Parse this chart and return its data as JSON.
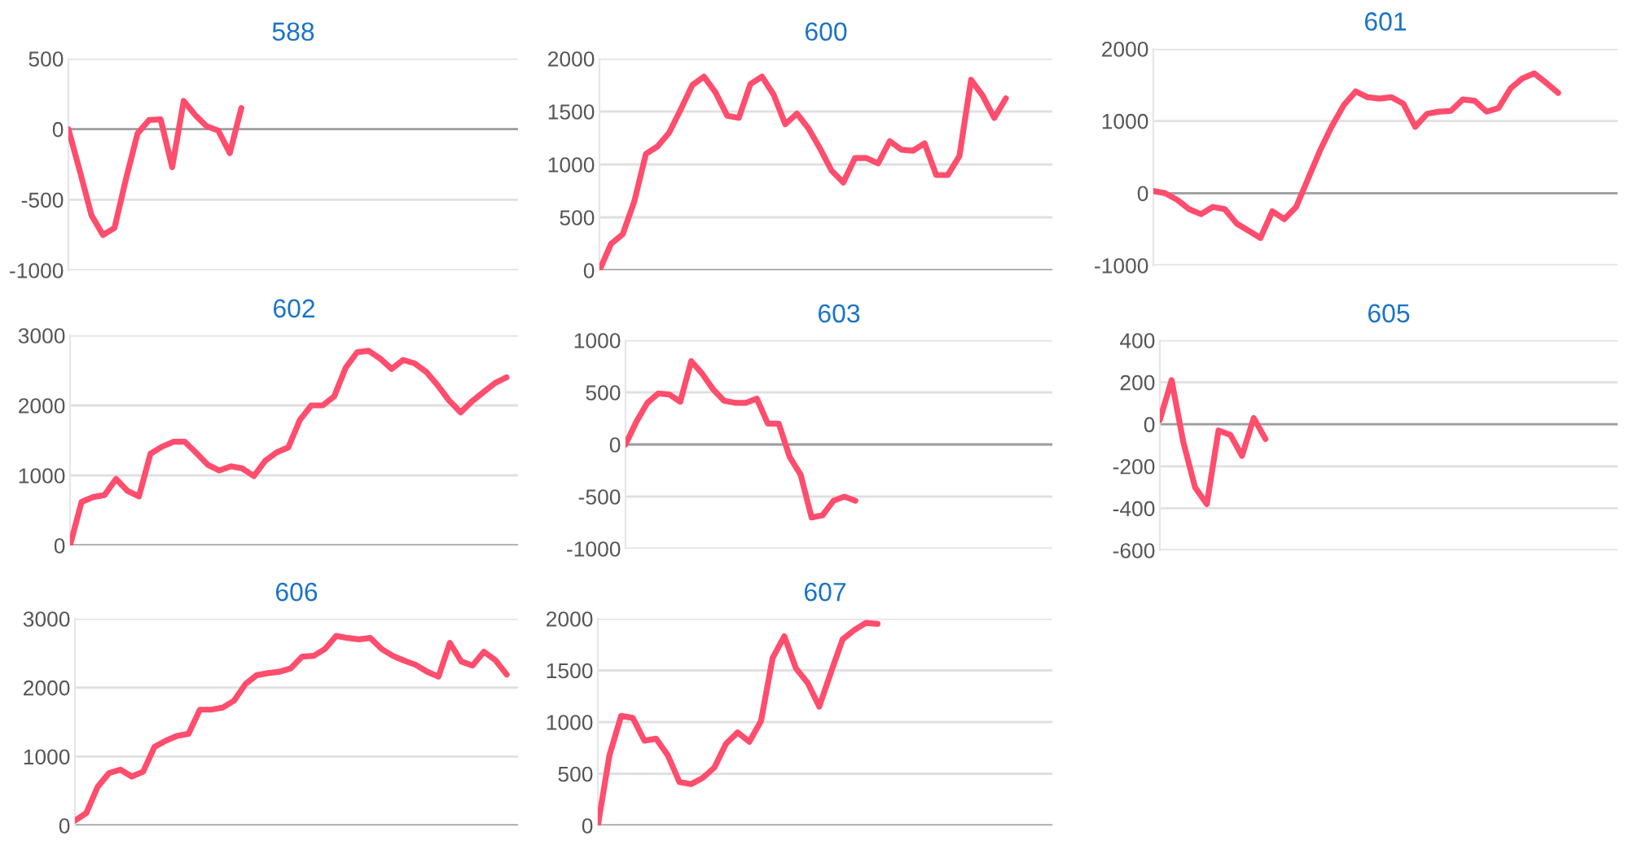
{
  "chart_data": [
    {
      "type": "line",
      "title": "588",
      "color": "#ff4d6d",
      "categories": [
        null,
        null,
        null,
        null,
        null,
        null,
        null,
        null,
        null,
        null,
        null,
        null,
        null,
        null,
        null,
        null,
        null,
        null,
        null,
        null,
        null,
        null,
        null,
        null,
        null,
        null,
        null,
        null,
        null,
        null,
        null,
        null,
        null,
        null,
        null,
        null,
        null,
        null,
        null,
        null
      ],
      "values": [
        0,
        -300,
        -610,
        -750,
        -700,
        -350,
        -30,
        65,
        70,
        -270,
        200,
        100,
        20,
        -10,
        -170,
        150,
        null,
        null,
        null,
        null,
        null,
        null,
        null,
        null,
        null,
        null,
        null,
        null,
        null,
        null,
        null,
        null,
        null,
        null,
        null,
        null,
        null,
        null,
        null,
        null
      ],
      "ylim": [
        -1000,
        500
      ],
      "yticks": [
        -1000,
        -500,
        0,
        500
      ],
      "grid": "y",
      "tick_labels": "y",
      "marker": "none",
      "line_style": "solid",
      "ref_lines": [
        {
          "axis": "y",
          "value": 0,
          "color": "#9e9e9e"
        }
      ]
    },
    {
      "type": "line",
      "title": "600",
      "color": "#ff4d6d",
      "categories": [
        null,
        null,
        null,
        null,
        null,
        null,
        null,
        null,
        null,
        null,
        null,
        null,
        null,
        null,
        null,
        null,
        null,
        null,
        null,
        null,
        null,
        null,
        null,
        null,
        null,
        null,
        null,
        null,
        null,
        null,
        null,
        null,
        null,
        null,
        null,
        null,
        null,
        null,
        null,
        null
      ],
      "values": [
        0,
        250,
        340,
        650,
        1100,
        1170,
        1300,
        1520,
        1750,
        1830,
        1680,
        1460,
        1440,
        1760,
        1830,
        1660,
        1380,
        1480,
        1340,
        1150,
        940,
        830,
        1060,
        1060,
        1010,
        1220,
        1140,
        1130,
        1200,
        900,
        900,
        1080,
        1800,
        1650,
        1440,
        1625,
        null,
        null,
        null,
        null
      ],
      "ylim": [
        0,
        2000
      ],
      "yticks": [
        0,
        500,
        1000,
        1500,
        2000
      ],
      "grid": "y",
      "tick_labels": "y",
      "marker": "none",
      "line_style": "solid",
      "ref_lines": [
        {
          "axis": "y",
          "value": 0,
          "color": "#9e9e9e"
        }
      ]
    },
    {
      "type": "line",
      "title": "601",
      "color": "#ff4d6d",
      "categories": [
        null,
        null,
        null,
        null,
        null,
        null,
        null,
        null,
        null,
        null,
        null,
        null,
        null,
        null,
        null,
        null,
        null,
        null,
        null,
        null,
        null,
        null,
        null,
        null,
        null,
        null,
        null,
        null,
        null,
        null,
        null,
        null,
        null,
        null,
        null,
        null,
        null,
        null,
        null,
        null
      ],
      "values": [
        30,
        0,
        -90,
        -220,
        -290,
        -190,
        -220,
        -420,
        -520,
        -620,
        -250,
        -360,
        -190,
        200,
        590,
        930,
        1220,
        1410,
        1330,
        1310,
        1330,
        1240,
        920,
        1100,
        1130,
        1140,
        1300,
        1280,
        1130,
        1180,
        1450,
        1590,
        1660,
        1530,
        1390,
        null,
        null,
        null,
        null,
        null
      ],
      "ylim": [
        -1000,
        2000
      ],
      "yticks": [
        -1000,
        0,
        1000,
        2000
      ],
      "grid": "y",
      "tick_labels": "y",
      "marker": "none",
      "line_style": "solid",
      "ref_lines": [
        {
          "axis": "y",
          "value": 0,
          "color": "#9e9e9e"
        }
      ]
    },
    {
      "type": "line",
      "title": "602",
      "color": "#ff4d6d",
      "categories": [
        null,
        null,
        null,
        null,
        null,
        null,
        null,
        null,
        null,
        null,
        null,
        null,
        null,
        null,
        null,
        null,
        null,
        null,
        null,
        null,
        null,
        null,
        null,
        null,
        null,
        null,
        null,
        null,
        null,
        null,
        null,
        null,
        null,
        null,
        null,
        null,
        null,
        null,
        null,
        null
      ],
      "values": [
        0,
        620,
        690,
        720,
        950,
        780,
        700,
        1310,
        1410,
        1480,
        1480,
        1320,
        1150,
        1070,
        1130,
        1100,
        990,
        1210,
        1330,
        1400,
        1790,
        2000,
        2000,
        2130,
        2540,
        2760,
        2780,
        2670,
        2520,
        2650,
        2600,
        2480,
        2290,
        2070,
        1900,
        2060,
        2190,
        2320,
        2400,
        null
      ],
      "ylim": [
        0,
        3000
      ],
      "yticks": [
        0,
        1000,
        2000,
        3000
      ],
      "grid": "y",
      "tick_labels": "y",
      "marker": "none",
      "line_style": "solid",
      "ref_lines": [
        {
          "axis": "y",
          "value": 0,
          "color": "#9e9e9e"
        }
      ]
    },
    {
      "type": "line",
      "title": "603",
      "color": "#ff4d6d",
      "categories": [
        null,
        null,
        null,
        null,
        null,
        null,
        null,
        null,
        null,
        null,
        null,
        null,
        null,
        null,
        null,
        null,
        null,
        null,
        null,
        null,
        null,
        null,
        null,
        null,
        null,
        null,
        null,
        null,
        null,
        null,
        null,
        null,
        null,
        null,
        null,
        null,
        null,
        null,
        null,
        null
      ],
      "values": [
        0,
        220,
        400,
        490,
        480,
        410,
        800,
        680,
        530,
        420,
        400,
        400,
        440,
        200,
        200,
        -120,
        -290,
        -700,
        -680,
        -540,
        -500,
        -540,
        null,
        null,
        null,
        null,
        null,
        null,
        null,
        null,
        null,
        null,
        null,
        null,
        null,
        null,
        null,
        null,
        null,
        null
      ],
      "ylim": [
        -1000,
        1000
      ],
      "yticks": [
        -1000,
        -500,
        0,
        500,
        1000
      ],
      "grid": "y",
      "tick_labels": "y",
      "marker": "none",
      "line_style": "solid",
      "ref_lines": [
        {
          "axis": "y",
          "value": 0,
          "color": "#9e9e9e"
        }
      ]
    },
    {
      "type": "line",
      "title": "605",
      "color": "#ff4d6d",
      "categories": [
        null,
        null,
        null,
        null,
        null,
        null,
        null,
        null,
        null,
        null,
        null,
        null,
        null,
        null,
        null,
        null,
        null,
        null,
        null,
        null,
        null,
        null,
        null,
        null,
        null,
        null,
        null,
        null,
        null,
        null,
        null,
        null,
        null,
        null,
        null,
        null,
        null,
        null,
        null,
        null
      ],
      "values": [
        20,
        210,
        -85,
        -300,
        -380,
        -30,
        -50,
        -150,
        30,
        -70,
        null,
        null,
        null,
        null,
        null,
        null,
        null,
        null,
        null,
        null,
        null,
        null,
        null,
        null,
        null,
        null,
        null,
        null,
        null,
        null,
        null,
        null,
        null,
        null,
        null,
        null,
        null,
        null,
        null,
        null
      ],
      "ylim": [
        -600,
        400
      ],
      "yticks": [
        -600,
        -400,
        -200,
        0,
        200,
        400
      ],
      "grid": "y",
      "tick_labels": "y",
      "marker": "none",
      "line_style": "solid",
      "ref_lines": [
        {
          "axis": "y",
          "value": 0,
          "color": "#9e9e9e"
        }
      ]
    },
    {
      "type": "line",
      "title": "606",
      "color": "#ff4d6d",
      "categories": [
        null,
        null,
        null,
        null,
        null,
        null,
        null,
        null,
        null,
        null,
        null,
        null,
        null,
        null,
        null,
        null,
        null,
        null,
        null,
        null,
        null,
        null,
        null,
        null,
        null,
        null,
        null,
        null,
        null,
        null,
        null,
        null,
        null,
        null,
        null,
        null,
        null,
        null,
        null,
        null
      ],
      "values": [
        70,
        180,
        560,
        760,
        810,
        710,
        780,
        1140,
        1230,
        1300,
        1330,
        1680,
        1680,
        1710,
        1810,
        2050,
        2180,
        2210,
        2230,
        2280,
        2450,
        2460,
        2560,
        2750,
        2720,
        2700,
        2720,
        2560,
        2460,
        2390,
        2330,
        2230,
        2160,
        2650,
        2380,
        2320,
        2520,
        2400,
        2190,
        null
      ],
      "ylim": [
        0,
        3000
      ],
      "yticks": [
        0,
        1000,
        2000,
        3000
      ],
      "grid": "y",
      "tick_labels": "y",
      "marker": "none",
      "line_style": "solid",
      "ref_lines": [
        {
          "axis": "y",
          "value": 0,
          "color": "#9e9e9e"
        }
      ]
    },
    {
      "type": "line",
      "title": "607",
      "color": "#ff4d6d",
      "categories": [
        null,
        null,
        null,
        null,
        null,
        null,
        null,
        null,
        null,
        null,
        null,
        null,
        null,
        null,
        null,
        null,
        null,
        null,
        null,
        null,
        null,
        null,
        null,
        null,
        null,
        null,
        null,
        null,
        null,
        null,
        null,
        null,
        null,
        null,
        null,
        null,
        null,
        null,
        null,
        null
      ],
      "values": [
        0,
        680,
        1060,
        1040,
        820,
        840,
        680,
        420,
        400,
        460,
        560,
        790,
        900,
        810,
        1010,
        1620,
        1830,
        1520,
        1380,
        1150,
        1480,
        1800,
        1890,
        1960,
        1950,
        null,
        null,
        null,
        null,
        null,
        null,
        null,
        null,
        null,
        null,
        null,
        null,
        null,
        null,
        null
      ],
      "ylim": [
        0,
        2000
      ],
      "yticks": [
        0,
        500,
        1000,
        1500,
        2000
      ],
      "grid": "y",
      "tick_labels": "y",
      "marker": "none",
      "line_style": "solid",
      "ref_lines": [
        {
          "axis": "y",
          "value": 0,
          "color": "#9e9e9e"
        }
      ]
    }
  ]
}
